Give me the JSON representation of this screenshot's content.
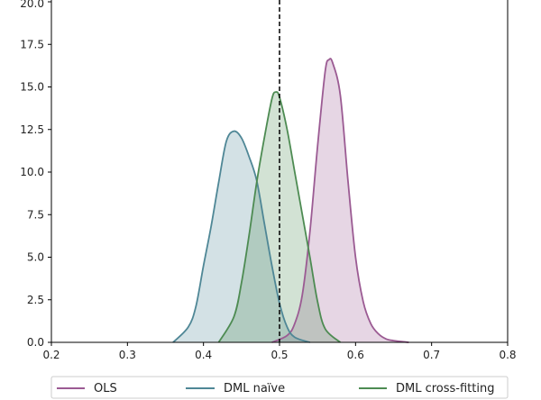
{
  "chart_data": {
    "type": "area",
    "title": "",
    "xlabel": "",
    "ylabel": "",
    "xlim": [
      0.2,
      0.8
    ],
    "ylim": [
      0,
      20
    ],
    "x_ticks": [
      {
        "value": 0.2,
        "label": "0.2"
      },
      {
        "value": 0.3,
        "label": "0.3"
      },
      {
        "value": 0.4,
        "label": "0.4"
      },
      {
        "value": 0.5,
        "label": "0.5"
      },
      {
        "value": 0.6,
        "label": "0.6"
      },
      {
        "value": 0.7,
        "label": "0.7"
      },
      {
        "value": 0.8,
        "label": "0.8"
      }
    ],
    "y_ticks": [
      {
        "value": 0,
        "label": "0.0"
      },
      {
        "value": 2.5,
        "label": "2.5"
      },
      {
        "value": 5,
        "label": "5.0"
      },
      {
        "value": 7.5,
        "label": "7.5"
      },
      {
        "value": 10,
        "label": "10.0"
      },
      {
        "value": 12.5,
        "label": "12.5"
      },
      {
        "value": 15,
        "label": "15.0"
      },
      {
        "value": 17.5,
        "label": "17.5"
      },
      {
        "value": 20,
        "label": "20.0"
      }
    ],
    "reference_line": {
      "x": 0.5,
      "style": "dashed",
      "color": "#000000"
    },
    "legend_position": "lower-center-below",
    "series": [
      {
        "name": "OLS",
        "color": "#9b5b93",
        "fill": "#dfc3da",
        "x": [
          0.49,
          0.51,
          0.52,
          0.53,
          0.54,
          0.55,
          0.56,
          0.565,
          0.57,
          0.58,
          0.59,
          0.6,
          0.61,
          0.62,
          0.63,
          0.64,
          0.65,
          0.67
        ],
        "y": [
          0.0,
          0.4,
          1.1,
          2.8,
          6.5,
          11.5,
          15.9,
          16.6,
          16.4,
          14.5,
          9.5,
          5.0,
          2.4,
          1.1,
          0.5,
          0.2,
          0.1,
          0.0
        ]
      },
      {
        "name": "DML naïve",
        "color": "#4f8796",
        "fill": "#cbdfe2",
        "x": [
          0.36,
          0.38,
          0.39,
          0.4,
          0.41,
          0.42,
          0.43,
          0.44,
          0.45,
          0.46,
          0.47,
          0.48,
          0.49,
          0.5,
          0.51,
          0.52,
          0.54
        ],
        "y": [
          0.0,
          0.9,
          2.1,
          4.5,
          6.8,
          9.4,
          11.8,
          12.4,
          12.0,
          10.9,
          9.5,
          7.0,
          4.5,
          2.3,
          0.9,
          0.3,
          0.0
        ]
      },
      {
        "name": "DML cross-fitting",
        "color": "#4d8b52",
        "fill": "#c9dec6",
        "x": [
          0.42,
          0.44,
          0.45,
          0.46,
          0.47,
          0.48,
          0.49,
          0.495,
          0.5,
          0.51,
          0.52,
          0.53,
          0.54,
          0.55,
          0.56,
          0.58
        ],
        "y": [
          0.0,
          1.5,
          3.5,
          6.3,
          9.4,
          12.0,
          14.3,
          14.7,
          14.4,
          12.5,
          10.0,
          7.5,
          5.0,
          2.4,
          0.8,
          0.0
        ]
      }
    ]
  }
}
